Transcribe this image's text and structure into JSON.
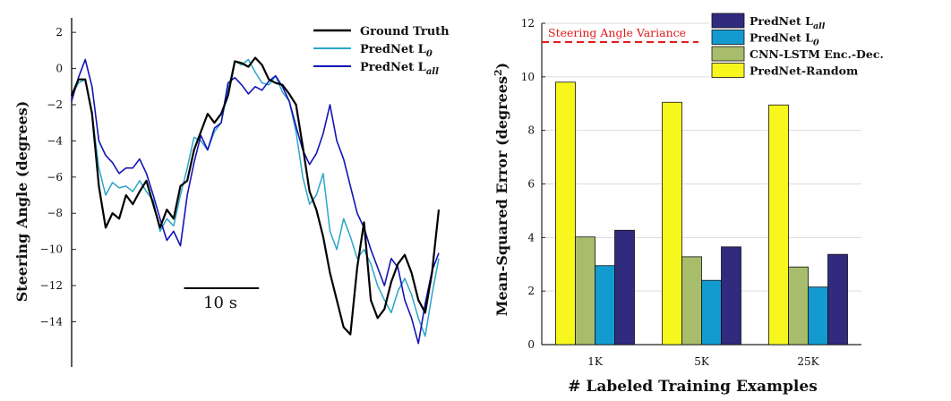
{
  "chart_data": [
    {
      "type": "line",
      "ylabel": "Steering Angle (degrees)",
      "ylim": [
        -16.5,
        2.8
      ],
      "y_ticks": [
        2,
        0,
        -2,
        -4,
        -6,
        -8,
        -10,
        -12,
        -14
      ],
      "y_tick_labels": [
        "2",
        "0",
        "−2",
        "−4",
        "−6",
        "−8",
        "−10",
        "−12",
        "−14"
      ],
      "scale_bar_label": "10 s",
      "x_start_s": 0,
      "x_end_s": 49,
      "scale_bar_s": [
        15,
        25
      ],
      "series": [
        {
          "name": "Ground Truth",
          "color": "#000000",
          "points": [
            [
              0,
              -1.5
            ],
            [
              1,
              -0.6
            ],
            [
              2,
              -0.6
            ],
            [
              3,
              -2.5
            ],
            [
              4,
              -6.5
            ],
            [
              5,
              -8.8
            ],
            [
              6,
              -8.0
            ],
            [
              7,
              -8.3
            ],
            [
              8,
              -7.0
            ],
            [
              9,
              -7.5
            ],
            [
              10,
              -6.8
            ],
            [
              11,
              -6.2
            ],
            [
              12,
              -7.5
            ],
            [
              13,
              -8.8
            ],
            [
              14,
              -7.8
            ],
            [
              15,
              -8.3
            ],
            [
              16,
              -6.5
            ],
            [
              17,
              -6.2
            ],
            [
              18,
              -4.5
            ],
            [
              19,
              -3.5
            ],
            [
              20,
              -2.5
            ],
            [
              21,
              -3.0
            ],
            [
              22,
              -2.5
            ],
            [
              23,
              -1.5
            ],
            [
              24,
              0.4
            ],
            [
              25,
              0.3
            ],
            [
              26,
              0.1
            ],
            [
              27,
              0.6
            ],
            [
              28,
              0.2
            ],
            [
              29,
              -0.6
            ],
            [
              30,
              -0.8
            ],
            [
              31,
              -0.9
            ],
            [
              32,
              -1.4
            ],
            [
              33,
              -2.0
            ],
            [
              34,
              -4.3
            ],
            [
              35,
              -6.8
            ],
            [
              36,
              -7.8
            ],
            [
              37,
              -9.3
            ],
            [
              38,
              -11.3
            ],
            [
              39,
              -12.8
            ],
            [
              40,
              -14.3
            ],
            [
              41,
              -14.7
            ],
            [
              42,
              -11.0
            ],
            [
              43,
              -8.5
            ],
            [
              44,
              -12.8
            ],
            [
              45,
              -13.8
            ],
            [
              46,
              -13.3
            ],
            [
              47,
              -11.8
            ],
            [
              48,
              -10.8
            ],
            [
              49,
              -10.3
            ],
            [
              50,
              -11.3
            ],
            [
              51,
              -12.8
            ],
            [
              52,
              -13.5
            ],
            [
              53,
              -11.3
            ],
            [
              54,
              -7.8
            ]
          ]
        },
        {
          "name": "PredNet L0",
          "color": "#2aa6c7",
          "points": [
            [
              0,
              -1.5
            ],
            [
              1,
              -0.8
            ],
            [
              2,
              -0.6
            ],
            [
              3,
              -2.5
            ],
            [
              4,
              -5.5
            ],
            [
              5,
              -7.0
            ],
            [
              6,
              -6.3
            ],
            [
              7,
              -6.6
            ],
            [
              8,
              -6.5
            ],
            [
              9,
              -6.8
            ],
            [
              10,
              -6.2
            ],
            [
              11,
              -6.8
            ],
            [
              12,
              -7.3
            ],
            [
              13,
              -9.0
            ],
            [
              14,
              -8.3
            ],
            [
              15,
              -8.7
            ],
            [
              16,
              -7.0
            ],
            [
              17,
              -5.5
            ],
            [
              18,
              -3.8
            ],
            [
              19,
              -4.0
            ],
            [
              20,
              -4.5
            ],
            [
              21,
              -3.5
            ],
            [
              22,
              -3.0
            ],
            [
              23,
              -1.2
            ],
            [
              24,
              0.4
            ],
            [
              25,
              0.2
            ],
            [
              26,
              0.5
            ],
            [
              27,
              -0.2
            ],
            [
              28,
              -0.8
            ],
            [
              29,
              -0.9
            ],
            [
              30,
              -0.4
            ],
            [
              31,
              -1.3
            ],
            [
              32,
              -1.8
            ],
            [
              33,
              -3.5
            ],
            [
              34,
              -6.0
            ],
            [
              35,
              -7.5
            ],
            [
              36,
              -7.0
            ],
            [
              37,
              -5.8
            ],
            [
              38,
              -9.0
            ],
            [
              39,
              -10.0
            ],
            [
              40,
              -8.3
            ],
            [
              41,
              -9.3
            ],
            [
              42,
              -10.5
            ],
            [
              43,
              -10.0
            ],
            [
              44,
              -10.8
            ],
            [
              45,
              -12.0
            ],
            [
              46,
              -12.8
            ],
            [
              47,
              -13.5
            ],
            [
              48,
              -12.3
            ],
            [
              49,
              -11.6
            ],
            [
              50,
              -12.5
            ],
            [
              51,
              -13.8
            ],
            [
              52,
              -14.8
            ],
            [
              53,
              -12.5
            ],
            [
              54,
              -10.5
            ]
          ]
        },
        {
          "name": "PredNet Lall",
          "color": "#1414b4",
          "points": [
            [
              0,
              -1.8
            ],
            [
              1,
              -0.5
            ],
            [
              2,
              0.5
            ],
            [
              3,
              -1.0
            ],
            [
              4,
              -4.0
            ],
            [
              5,
              -4.8
            ],
            [
              6,
              -5.2
            ],
            [
              7,
              -5.8
            ],
            [
              8,
              -5.5
            ],
            [
              9,
              -5.5
            ],
            [
              10,
              -5.0
            ],
            [
              11,
              -5.8
            ],
            [
              12,
              -7.0
            ],
            [
              13,
              -8.3
            ],
            [
              14,
              -9.5
            ],
            [
              15,
              -9.0
            ],
            [
              16,
              -9.8
            ],
            [
              17,
              -7.0
            ],
            [
              18,
              -5.2
            ],
            [
              19,
              -3.7
            ],
            [
              20,
              -4.5
            ],
            [
              21,
              -3.3
            ],
            [
              22,
              -3.0
            ],
            [
              23,
              -0.8
            ],
            [
              24,
              -0.5
            ],
            [
              25,
              -0.9
            ],
            [
              26,
              -1.4
            ],
            [
              27,
              -1.0
            ],
            [
              28,
              -1.2
            ],
            [
              29,
              -0.7
            ],
            [
              30,
              -0.4
            ],
            [
              31,
              -1.0
            ],
            [
              32,
              -1.8
            ],
            [
              33,
              -3.2
            ],
            [
              34,
              -4.5
            ],
            [
              35,
              -5.3
            ],
            [
              36,
              -4.7
            ],
            [
              37,
              -3.6
            ],
            [
              38,
              -2.0
            ],
            [
              39,
              -4.0
            ],
            [
              40,
              -5.0
            ],
            [
              41,
              -6.5
            ],
            [
              42,
              -8.0
            ],
            [
              43,
              -8.8
            ],
            [
              44,
              -10.0
            ],
            [
              45,
              -11.0
            ],
            [
              46,
              -12.0
            ],
            [
              47,
              -10.5
            ],
            [
              48,
              -11.0
            ],
            [
              49,
              -12.8
            ],
            [
              50,
              -13.8
            ],
            [
              51,
              -15.2
            ],
            [
              52,
              -13.0
            ],
            [
              53,
              -11.2
            ],
            [
              54,
              -10.2
            ]
          ]
        }
      ],
      "legend": {
        "placement": "top-right",
        "entries": [
          {
            "label": "Ground Truth",
            "color": "#000000",
            "sub": ""
          },
          {
            "label": "PredNet L",
            "color": "#2aa6c7",
            "sub": "0"
          },
          {
            "label": "PredNet L",
            "color": "#1414b4",
            "sub": "all"
          }
        ]
      }
    },
    {
      "type": "bar",
      "xlabel": "# Labeled Training Examples",
      "ylabel_main": "Mean-Squared Error (degrees",
      "ylabel_sup": "2",
      "ylabel_close": ")",
      "categories": [
        "1K",
        "5K",
        "25K"
      ],
      "ylim": [
        0,
        12
      ],
      "y_ticks": [
        0,
        2,
        4,
        6,
        8,
        10,
        12
      ],
      "grid": true,
      "series": [
        {
          "name": "PredNet-Random",
          "color": "#f7f71e",
          "values": [
            9.8,
            9.05,
            8.95
          ]
        },
        {
          "name": "CNN-LSTM Enc.-Dec.",
          "color": "#a7bd6c",
          "values": [
            4.02,
            3.28,
            2.9
          ]
        },
        {
          "name": "PredNet L0",
          "color": "#139bd0",
          "values": [
            2.95,
            2.4,
            2.15
          ]
        },
        {
          "name": "PredNet Lall",
          "color": "#302b7e",
          "values": [
            4.27,
            3.65,
            3.37
          ]
        }
      ],
      "reference_line": {
        "value": 11.3,
        "label": "Steering Angle Variance",
        "color": "#e01b1b"
      },
      "legend": {
        "placement": "top-right",
        "entries": [
          {
            "label": "PredNet L",
            "sub": "all",
            "color": "#302b7e"
          },
          {
            "label": "PredNet L",
            "sub": "0",
            "color": "#139bd0"
          },
          {
            "label": "CNN-LSTM Enc.-Dec.",
            "sub": "",
            "color": "#a7bd6c"
          },
          {
            "label": "PredNet-Random",
            "sub": "",
            "color": "#f7f71e"
          }
        ]
      }
    }
  ]
}
